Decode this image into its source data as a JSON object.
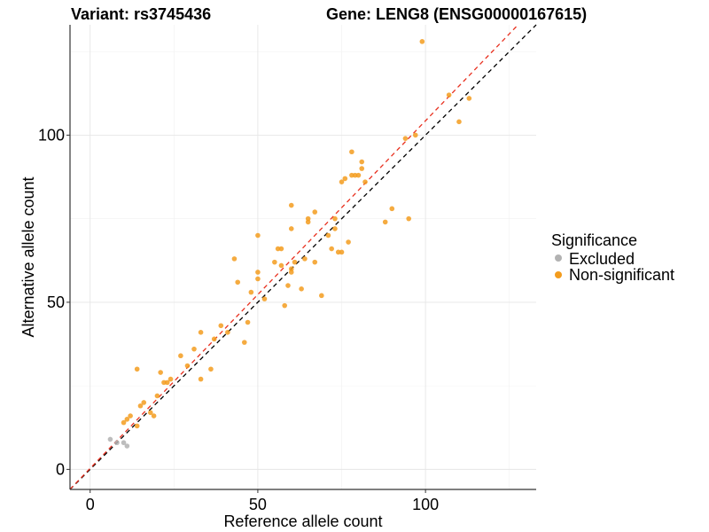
{
  "header": {
    "variant": "Variant: rs3745436",
    "gene": "Gene: LENG8 (ENSG00000167615)"
  },
  "chart_data": {
    "type": "scatter",
    "xlabel": "Reference allele count",
    "ylabel": "Alternative allele count",
    "xlim": [
      -6,
      133
    ],
    "ylim": [
      -6,
      133
    ],
    "x_ticks": [
      0,
      50,
      100
    ],
    "y_ticks": [
      0,
      50,
      100
    ],
    "grid": true,
    "legend": {
      "title": "Significance",
      "placement": "right",
      "entries": [
        {
          "label": "Excluded",
          "color": "#b2b2b2"
        },
        {
          "label": "Non-significant",
          "color": "#f39c1e"
        }
      ]
    },
    "reference_lines": [
      {
        "kind": "identity",
        "slope": 1,
        "intercept": 0,
        "color": "#000000",
        "dash": "dashed"
      },
      {
        "kind": "fit",
        "slope": 1.04,
        "intercept": 0.3,
        "color": "#e8301f",
        "dash": "dashed"
      }
    ],
    "series": [
      {
        "name": "Excluded",
        "color": "#b2b2b2",
        "points": [
          [
            6,
            9
          ],
          [
            8,
            8
          ],
          [
            10,
            8
          ],
          [
            11,
            7
          ]
        ]
      },
      {
        "name": "Non-significant",
        "color": "#f39c1e",
        "points": [
          [
            10,
            14
          ],
          [
            11,
            15
          ],
          [
            12,
            16
          ],
          [
            14,
            13
          ],
          [
            15,
            19
          ],
          [
            16,
            20
          ],
          [
            14,
            30
          ],
          [
            18,
            17
          ],
          [
            19,
            16
          ],
          [
            20,
            22
          ],
          [
            21,
            29
          ],
          [
            22,
            26
          ],
          [
            23,
            26
          ],
          [
            24,
            27
          ],
          [
            27,
            34
          ],
          [
            29,
            31
          ],
          [
            31,
            36
          ],
          [
            33,
            27
          ],
          [
            33,
            41
          ],
          [
            36,
            30
          ],
          [
            37,
            39
          ],
          [
            39,
            43
          ],
          [
            41,
            41
          ],
          [
            43,
            63
          ],
          [
            44,
            56
          ],
          [
            46,
            38
          ],
          [
            47,
            44
          ],
          [
            48,
            53
          ],
          [
            50,
            57
          ],
          [
            50,
            59
          ],
          [
            50,
            70
          ],
          [
            52,
            51
          ],
          [
            55,
            62
          ],
          [
            56,
            66
          ],
          [
            57,
            61
          ],
          [
            57,
            66
          ],
          [
            58,
            49
          ],
          [
            59,
            55
          ],
          [
            60,
            59
          ],
          [
            60,
            60
          ],
          [
            60,
            72
          ],
          [
            60,
            79
          ],
          [
            61,
            62
          ],
          [
            63,
            54
          ],
          [
            64,
            63
          ],
          [
            65,
            74
          ],
          [
            65,
            75
          ],
          [
            67,
            62
          ],
          [
            67,
            77
          ],
          [
            69,
            52
          ],
          [
            71,
            70
          ],
          [
            72,
            66
          ],
          [
            73,
            72
          ],
          [
            73,
            75
          ],
          [
            74,
            65
          ],
          [
            75,
            65
          ],
          [
            75,
            86
          ],
          [
            76,
            87
          ],
          [
            77,
            68
          ],
          [
            78,
            88
          ],
          [
            78,
            95
          ],
          [
            79,
            88
          ],
          [
            80,
            88
          ],
          [
            81,
            90
          ],
          [
            81,
            92
          ],
          [
            82,
            86
          ],
          [
            88,
            74
          ],
          [
            90,
            78
          ],
          [
            94,
            99
          ],
          [
            95,
            75
          ],
          [
            97,
            100
          ],
          [
            99,
            128
          ],
          [
            107,
            112
          ],
          [
            110,
            104
          ],
          [
            113,
            111
          ]
        ]
      }
    ]
  }
}
